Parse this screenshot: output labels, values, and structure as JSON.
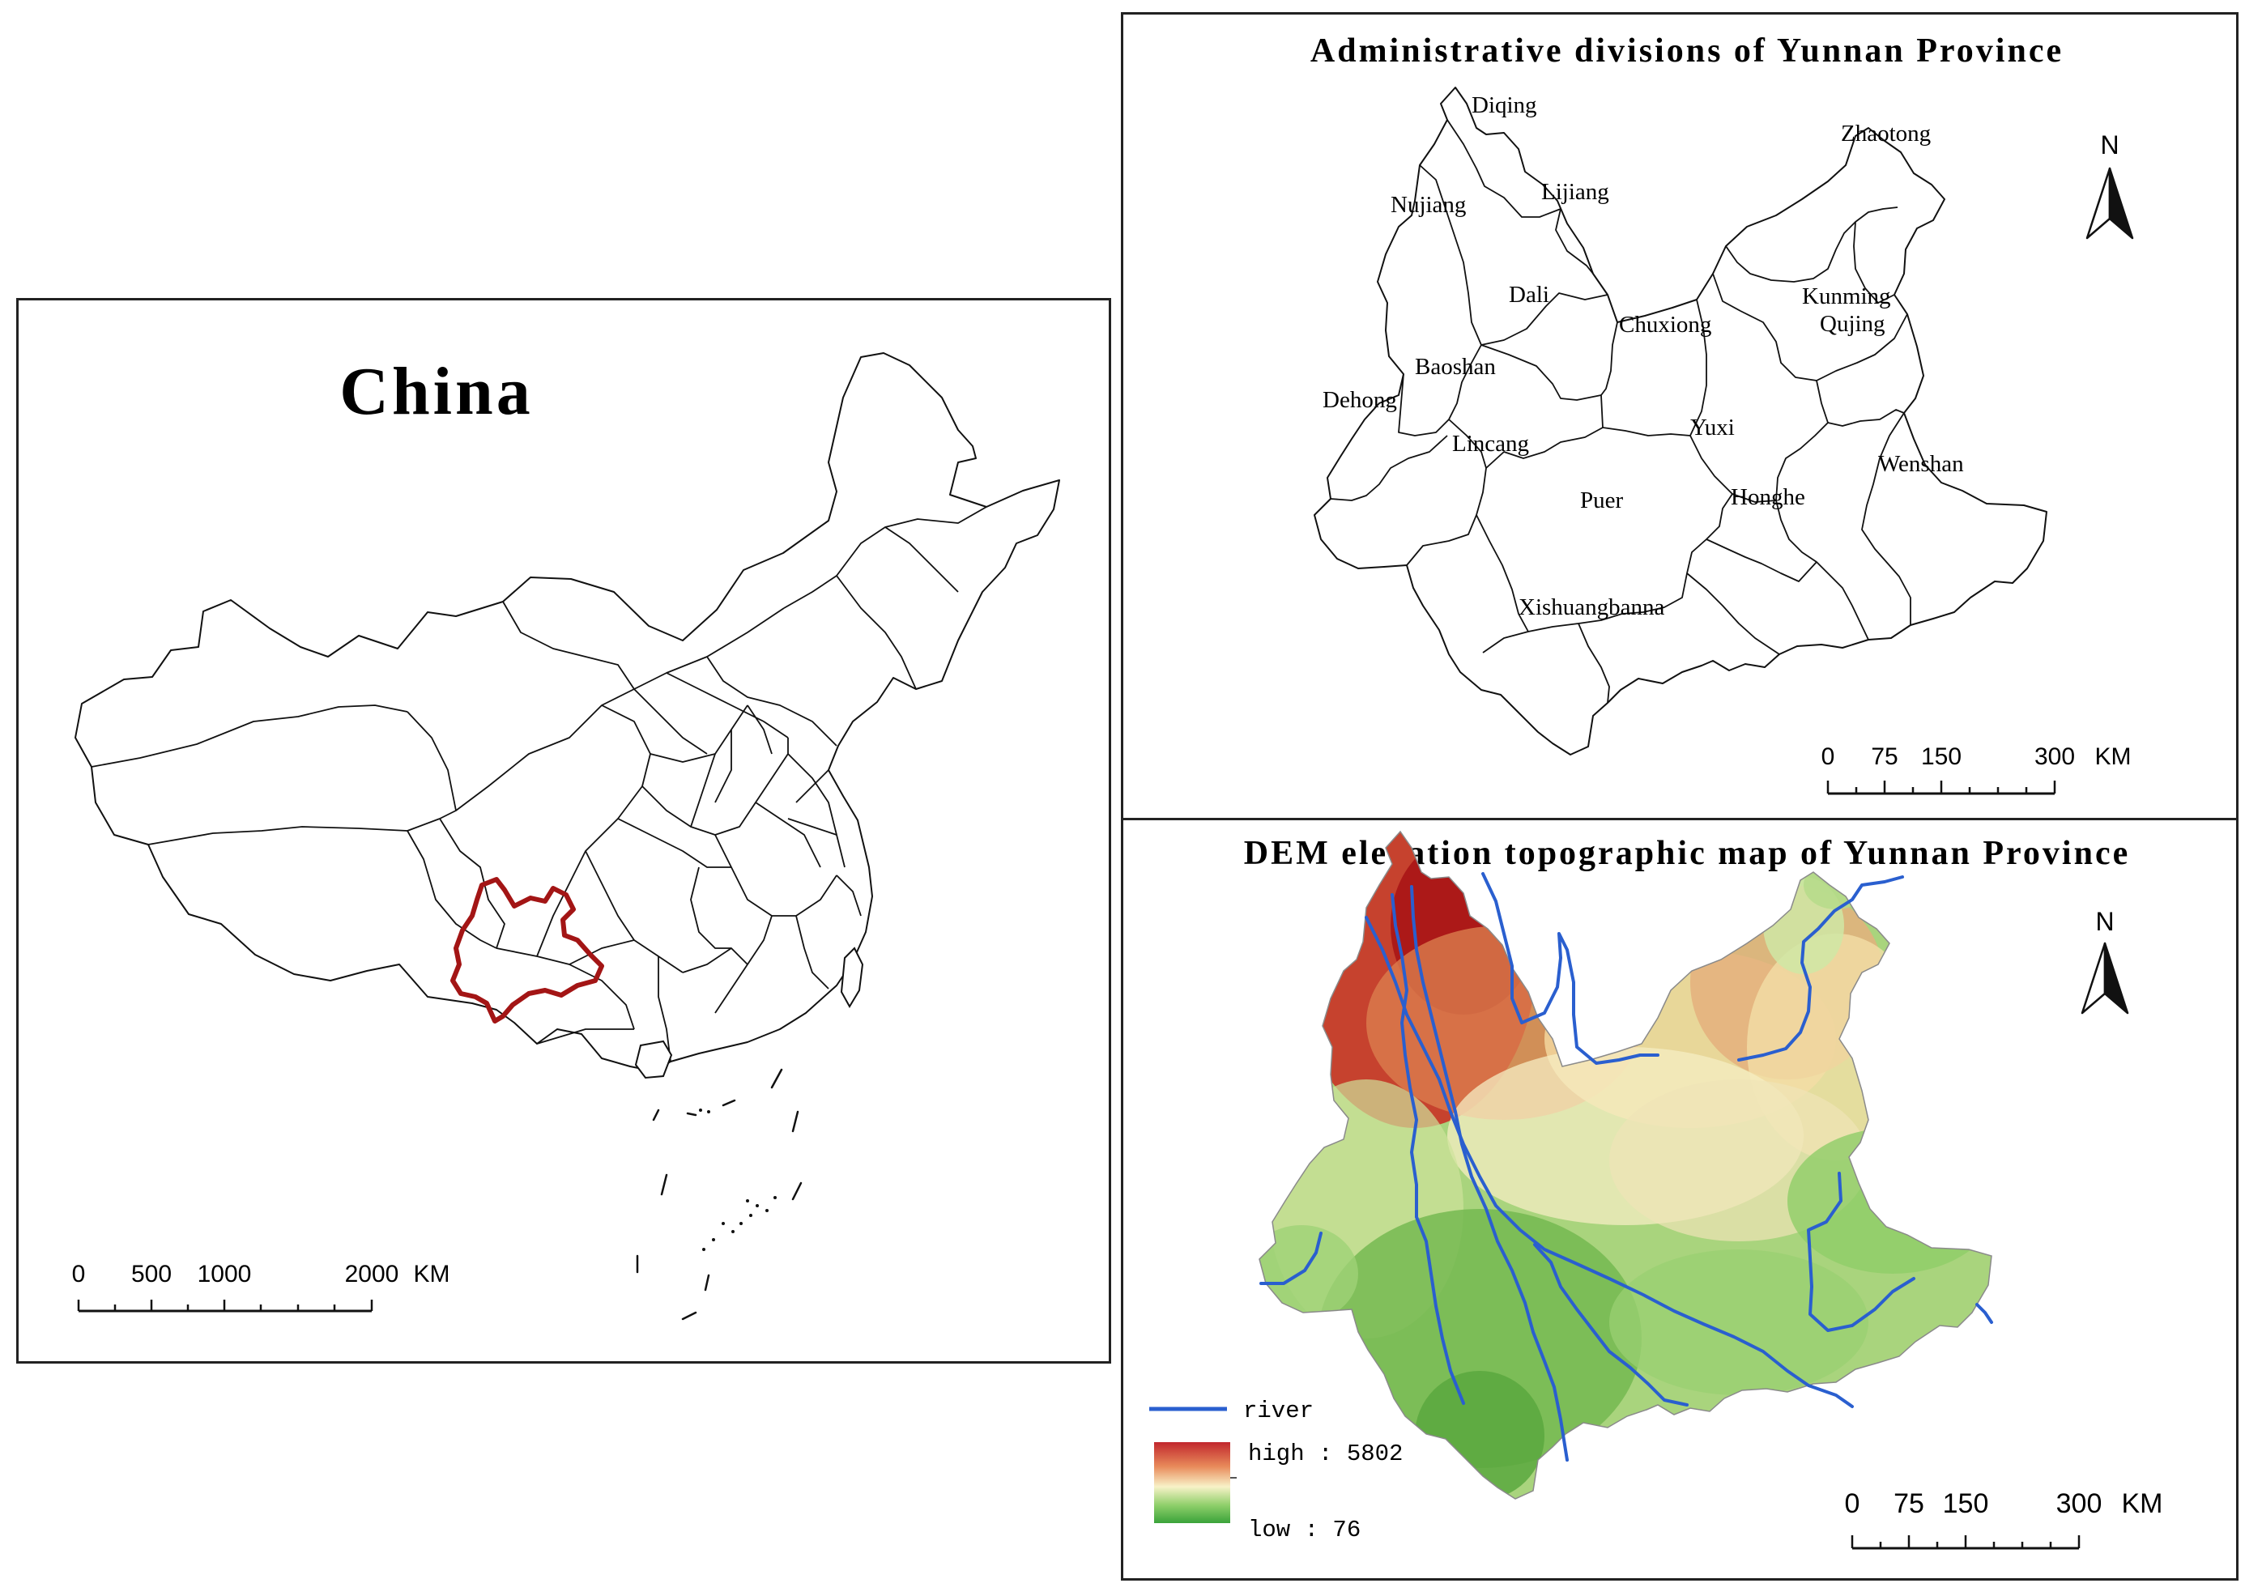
{
  "china_panel": {
    "title": "China",
    "scale_bar": {
      "ticks": [
        "0",
        "500",
        "1000",
        "2000"
      ],
      "unit": "KM"
    },
    "highlight_color": "#a31515"
  },
  "admin_panel": {
    "title": "Administrative divisions of Yunnan Province",
    "north_label": "N",
    "scale_bar": {
      "ticks": [
        "0",
        "75",
        "150",
        "300"
      ],
      "unit": "KM"
    },
    "cities": [
      {
        "name": "Diqing"
      },
      {
        "name": "Zhaotong"
      },
      {
        "name": "Lijiang"
      },
      {
        "name": "Nujiang"
      },
      {
        "name": "Dali"
      },
      {
        "name": "Kunming"
      },
      {
        "name": "Chuxiong"
      },
      {
        "name": "Qujing"
      },
      {
        "name": "Baoshan"
      },
      {
        "name": "Dehong"
      },
      {
        "name": "Yuxi"
      },
      {
        "name": "Lincang"
      },
      {
        "name": "Wenshan"
      },
      {
        "name": "Puer"
      },
      {
        "name": "Honghe"
      },
      {
        "name": "Xishuangbanna"
      }
    ]
  },
  "dem_panel": {
    "title": "DEM elevation topographic map of Yunnan Province",
    "north_label": "N",
    "legend": {
      "river_label": "river",
      "river_color": "#2a5fcf",
      "high_label": "high : 5802",
      "low_label": "low : 76",
      "ramp_colors": [
        "#c1272d",
        "#e88a5a",
        "#f8f2c8",
        "#8fcf6a",
        "#3aa33a"
      ]
    },
    "scale_bar": {
      "ticks": [
        "0",
        "75",
        "150",
        "300"
      ],
      "unit": "KM"
    }
  }
}
